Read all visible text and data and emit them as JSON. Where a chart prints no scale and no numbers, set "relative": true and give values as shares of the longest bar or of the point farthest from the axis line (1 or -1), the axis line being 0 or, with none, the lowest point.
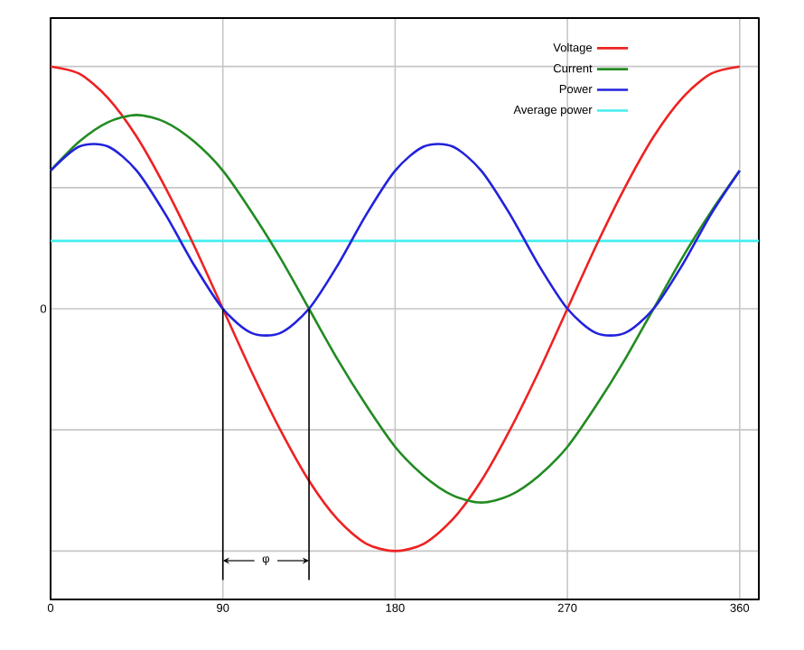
{
  "chart_data": {
    "type": "line",
    "relative": true,
    "x": [
      0,
      15,
      30,
      45,
      60,
      75,
      90,
      105,
      120,
      135,
      150,
      165,
      180,
      195,
      210,
      225,
      240,
      255,
      270,
      285,
      300,
      315,
      330,
      345,
      360
    ],
    "xlim": [
      0,
      370
    ],
    "xticks": [
      0,
      90,
      180,
      270,
      360
    ],
    "grid": true,
    "legend": "top right",
    "series": [
      {
        "name": "Voltage",
        "color": "#ee2222",
        "values": [
          1,
          0.97,
          0.87,
          0.71,
          0.5,
          0.26,
          0,
          -0.26,
          -0.5,
          -0.71,
          -0.87,
          -0.97,
          -1,
          -0.97,
          -0.87,
          -0.71,
          -0.5,
          -0.26,
          0,
          0.26,
          0.5,
          0.71,
          0.87,
          0.97,
          1
        ]
      },
      {
        "name": "Current",
        "color": "#228b22",
        "values": [
          0.57,
          0.69,
          0.77,
          0.8,
          0.77,
          0.69,
          0.57,
          0.4,
          0.21,
          0,
          -0.21,
          -0.4,
          -0.57,
          -0.69,
          -0.77,
          -0.8,
          -0.77,
          -0.69,
          -0.57,
          -0.4,
          -0.21,
          0,
          0.21,
          0.4,
          0.57
        ]
      },
      {
        "name": "Power",
        "color": "#2222dd",
        "values": [
          0.57,
          0.67,
          0.67,
          0.57,
          0.39,
          0.18,
          0,
          -0.1,
          -0.1,
          0,
          0.18,
          0.39,
          0.57,
          0.67,
          0.67,
          0.57,
          0.39,
          0.18,
          0,
          -0.1,
          -0.1,
          0,
          0.18,
          0.39,
          0.57
        ]
      }
    ],
    "ref_lines": [
      {
        "axis": "y",
        "value": 0.28,
        "label": "Average power",
        "color": "#44eeee"
      }
    ],
    "annotations": [
      "0",
      "φ"
    ]
  }
}
